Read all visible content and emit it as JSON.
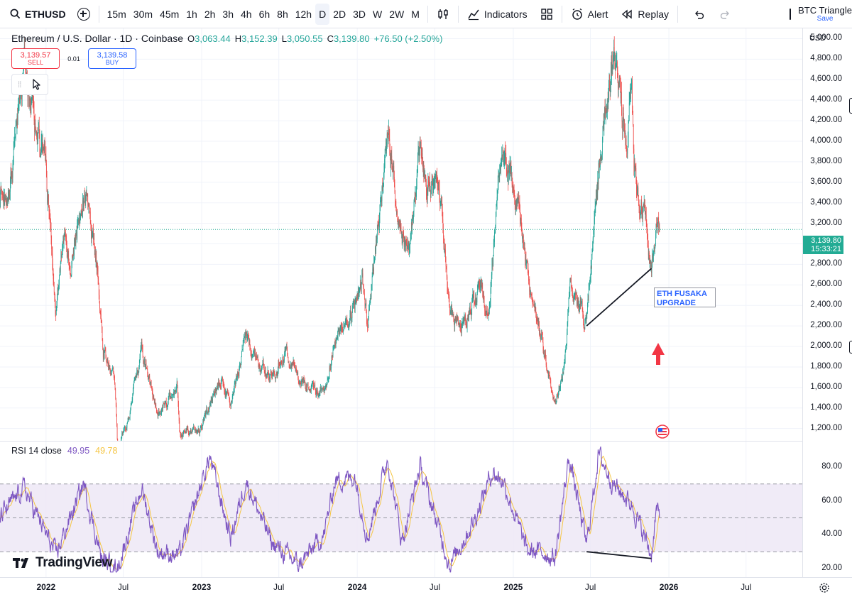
{
  "toolbar": {
    "symbol": "ETHUSD",
    "intervals": [
      "15m",
      "30m",
      "45m",
      "1h",
      "2h",
      "3h",
      "4h",
      "6h",
      "8h",
      "12h",
      "D",
      "2D",
      "3D",
      "W",
      "2W",
      "M"
    ],
    "active_interval": "D",
    "indicators_label": "Indicators",
    "alert_label": "Alert",
    "replay_label": "Replay",
    "layout_name": "BTC Triangle",
    "save_label": "Save",
    "icons": [
      "search-icon",
      "plus-circle-icon",
      "candles-icon",
      "indicators-icon",
      "templates-icon",
      "alert-clock-icon",
      "replay-icon",
      "undo-icon",
      "redo-icon"
    ]
  },
  "legend": {
    "title": "Ethereum / U.S. Dollar · 1D · Coinbase",
    "o_label": "O",
    "o": "3,063.44",
    "h_label": "H",
    "h": "3,152.39",
    "l_label": "L",
    "l": "3,050.55",
    "c_label": "C",
    "c": "3,139.80",
    "change": "+76.50 (+2.50%)"
  },
  "trade": {
    "sell_price": "3,139.57",
    "sell_label": "SELL",
    "spread": "0.01",
    "buy_price": "3,139.58",
    "buy_label": "BUY"
  },
  "price_axis": {
    "currency": "USD",
    "current_price": "3,139.80",
    "countdown": "15:33:21"
  },
  "rsi_legend": {
    "label": "RSI 14 close",
    "rsi_value": "49.95",
    "ma_value": "49.78"
  },
  "annotation": {
    "line1": "ETH FUSAKA",
    "line2": "UPGRADE"
  },
  "brand": "TradingView",
  "colors": {
    "up": "#26a69a",
    "down": "#ef5350",
    "rsi_line": "#7e57c2",
    "rsi_ma": "#f5c542",
    "rsi_band": "#ede7f6",
    "annotation_text": "#2962ff",
    "arrow": "#f23645",
    "price_tag": "#22ab94"
  },
  "chart_data": [
    {
      "type": "candlestick",
      "series_name": "ETHUSD daily",
      "y_axis_ticks": [
        1200,
        1400,
        1600,
        1800,
        2000,
        2200,
        2400,
        2600,
        2800,
        3000,
        3200,
        3400,
        3600,
        3800,
        4000,
        4200,
        4400,
        4600,
        4800,
        5000
      ],
      "y_axis_tick_labels": [
        "1,200.00",
        "1,400.00",
        "1,600.00",
        "1,800.00",
        "2,000.00",
        "2,200.00",
        "2,400.00",
        "2,600.00",
        "2,800.00",
        "3,000.00",
        "3,200.00",
        "3,400.00",
        "3,600.00",
        "3,800.00",
        "4,000.00",
        "4,200.00",
        "4,400.00",
        "4,600.00",
        "4,800.00",
        "5,000.00"
      ],
      "ylim": [
        1080,
        5100
      ],
      "x_range": [
        "2021-09-15",
        "2026-11-10"
      ],
      "x_ticks": [
        {
          "date": "2022-01-01",
          "label": "2022",
          "year": true
        },
        {
          "date": "2022-07-01",
          "label": "Jul",
          "year": false
        },
        {
          "date": "2023-01-01",
          "label": "2023",
          "year": true
        },
        {
          "date": "2023-07-01",
          "label": "Jul",
          "year": false
        },
        {
          "date": "2024-01-01",
          "label": "2024",
          "year": true
        },
        {
          "date": "2024-07-01",
          "label": "Jul",
          "year": false
        },
        {
          "date": "2025-01-01",
          "label": "2025",
          "year": true
        },
        {
          "date": "2025-07-01",
          "label": "Jul",
          "year": false
        },
        {
          "date": "2026-01-01",
          "label": "2026",
          "year": true
        },
        {
          "date": "2026-07-01",
          "label": "Jul",
          "year": false
        }
      ],
      "approx_close_path": [
        [
          "2021-09-15",
          3500
        ],
        [
          "2021-10-05",
          3400
        ],
        [
          "2021-11-10",
          4700
        ],
        [
          "2021-12-05",
          4200
        ],
        [
          "2022-01-01",
          3750
        ],
        [
          "2022-01-24",
          2300
        ],
        [
          "2022-02-10",
          3100
        ],
        [
          "2022-03-01",
          2800
        ],
        [
          "2022-04-01",
          3500
        ],
        [
          "2022-05-01",
          2800
        ],
        [
          "2022-05-15",
          2000
        ],
        [
          "2022-06-10",
          1700
        ],
        [
          "2022-06-18",
          1000
        ],
        [
          "2022-07-15",
          1300
        ],
        [
          "2022-08-13",
          2000
        ],
        [
          "2022-09-20",
          1300
        ],
        [
          "2022-11-05",
          1600
        ],
        [
          "2022-11-10",
          1150
        ],
        [
          "2022-12-31",
          1200
        ],
        [
          "2023-02-15",
          1700
        ],
        [
          "2023-03-10",
          1400
        ],
        [
          "2023-04-15",
          2100
        ],
        [
          "2023-05-15",
          1800
        ],
        [
          "2023-06-15",
          1700
        ],
        [
          "2023-07-15",
          1950
        ],
        [
          "2023-08-20",
          1650
        ],
        [
          "2023-10-15",
          1550
        ],
        [
          "2023-11-10",
          2100
        ],
        [
          "2023-12-20",
          2300
        ],
        [
          "2024-01-12",
          2700
        ],
        [
          "2024-01-25",
          2200
        ],
        [
          "2024-03-12",
          4050
        ],
        [
          "2024-04-15",
          3000
        ],
        [
          "2024-05-01",
          2900
        ],
        [
          "2024-05-27",
          3900
        ],
        [
          "2024-06-20",
          3500
        ],
        [
          "2024-07-15",
          3400
        ],
        [
          "2024-08-05",
          2300
        ],
        [
          "2024-09-06",
          2200
        ],
        [
          "2024-10-15",
          2600
        ],
        [
          "2024-11-05",
          2400
        ],
        [
          "2024-12-08",
          4000
        ],
        [
          "2025-01-15",
          3300
        ],
        [
          "2025-02-03",
          2700
        ],
        [
          "2025-03-10",
          2000
        ],
        [
          "2025-04-09",
          1400
        ],
        [
          "2025-05-01",
          1800
        ],
        [
          "2025-05-14",
          2600
        ],
        [
          "2025-06-22",
          2250
        ],
        [
          "2025-07-20",
          3700
        ],
        [
          "2025-08-24",
          4900
        ],
        [
          "2025-09-25",
          3900
        ],
        [
          "2025-10-06",
          4700
        ],
        [
          "2025-10-11",
          3800
        ],
        [
          "2025-11-04",
          3300
        ],
        [
          "2025-11-21",
          2750
        ],
        [
          "2025-12-03",
          3200
        ],
        [
          "2025-12-10",
          3140
        ]
      ],
      "current_price": 3139.8,
      "trendline": [
        [
          "2025-06-22",
          2200
        ],
        [
          "2025-11-21",
          2760
        ]
      ]
    },
    {
      "type": "line",
      "series_name": "RSI 14 close",
      "ylim": [
        15,
        95
      ],
      "y_axis_ticks": [
        20,
        40,
        60,
        80
      ],
      "y_axis_tick_labels": [
        "20.00",
        "40.00",
        "60.00",
        "80.00"
      ],
      "bands": {
        "upper": 70,
        "middle": 50,
        "lower": 30
      },
      "approx_path": [
        [
          "2021-09-15",
          50
        ],
        [
          "2021-11-10",
          68
        ],
        [
          "2022-01-24",
          28
        ],
        [
          "2022-03-30",
          70
        ],
        [
          "2022-05-12",
          25
        ],
        [
          "2022-06-18",
          20
        ],
        [
          "2022-08-13",
          68
        ],
        [
          "2022-09-20",
          30
        ],
        [
          "2022-11-10",
          28
        ],
        [
          "2023-01-20",
          86
        ],
        [
          "2023-03-10",
          38
        ],
        [
          "2023-04-15",
          72
        ],
        [
          "2023-06-15",
          35
        ],
        [
          "2023-08-18",
          22
        ],
        [
          "2023-10-15",
          40
        ],
        [
          "2023-11-10",
          72
        ],
        [
          "2023-12-27",
          74
        ],
        [
          "2024-01-25",
          38
        ],
        [
          "2024-03-12",
          85
        ],
        [
          "2024-04-15",
          36
        ],
        [
          "2024-05-27",
          80
        ],
        [
          "2024-08-05",
          22
        ],
        [
          "2024-09-30",
          48
        ],
        [
          "2024-11-12",
          77
        ],
        [
          "2024-12-08",
          72
        ],
        [
          "2025-02-03",
          30
        ],
        [
          "2025-03-10",
          30
        ],
        [
          "2025-04-09",
          26
        ],
        [
          "2025-05-12",
          86
        ],
        [
          "2025-06-22",
          34
        ],
        [
          "2025-07-20",
          88
        ],
        [
          "2025-08-24",
          70
        ],
        [
          "2025-10-06",
          58
        ],
        [
          "2025-11-21",
          28
        ],
        [
          "2025-12-03",
          55
        ],
        [
          "2025-12-10",
          49.95
        ]
      ],
      "ma_smoothing": 14,
      "divergence_line": [
        [
          "2025-06-22",
          30
        ],
        [
          "2025-11-21",
          26
        ]
      ]
    }
  ]
}
